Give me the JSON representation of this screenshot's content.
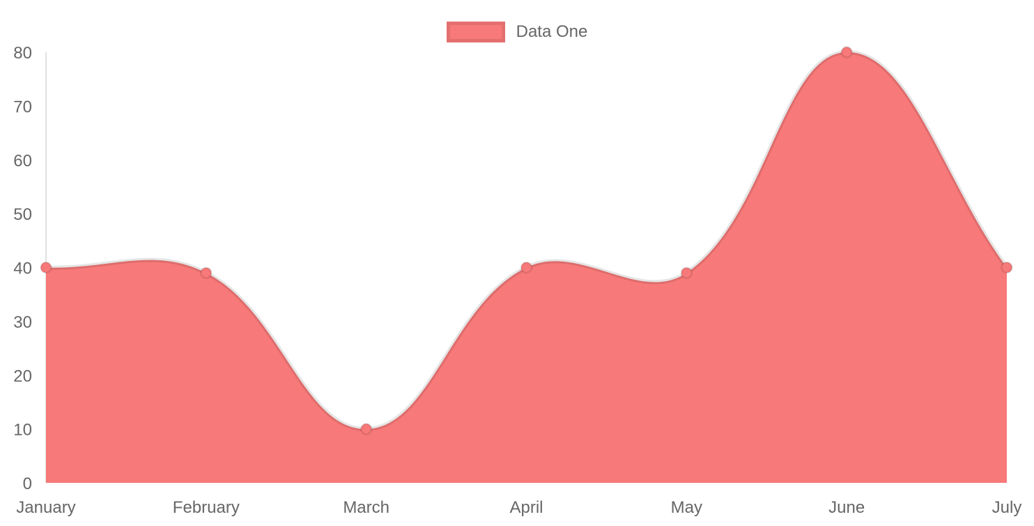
{
  "chart_data": {
    "type": "area",
    "title": "",
    "categories": [
      "January",
      "February",
      "March",
      "April",
      "May",
      "June",
      "July"
    ],
    "series": [
      {
        "name": "Data One",
        "values": [
          40,
          39,
          10,
          40,
          39,
          80,
          40
        ]
      }
    ],
    "xlabel": "",
    "ylabel": "",
    "ylim": [
      0,
      80
    ],
    "y_ticks": [
      0,
      10,
      20,
      30,
      40,
      50,
      60,
      70,
      80
    ],
    "grid": "off",
    "legend_position": "top",
    "curve": "smooth-bezier-tension-0.4",
    "colors": {
      "area_fill": "#f87979",
      "line_stroke": "rgba(0,0,0,0.10)",
      "point_fill": "#f87979",
      "point_stroke": "rgba(0,0,0,0.10)",
      "axis_line": "rgba(0,0,0,0.12)",
      "tick_text": "#666666",
      "legend_text": "#666666",
      "background": "#ffffff"
    }
  }
}
